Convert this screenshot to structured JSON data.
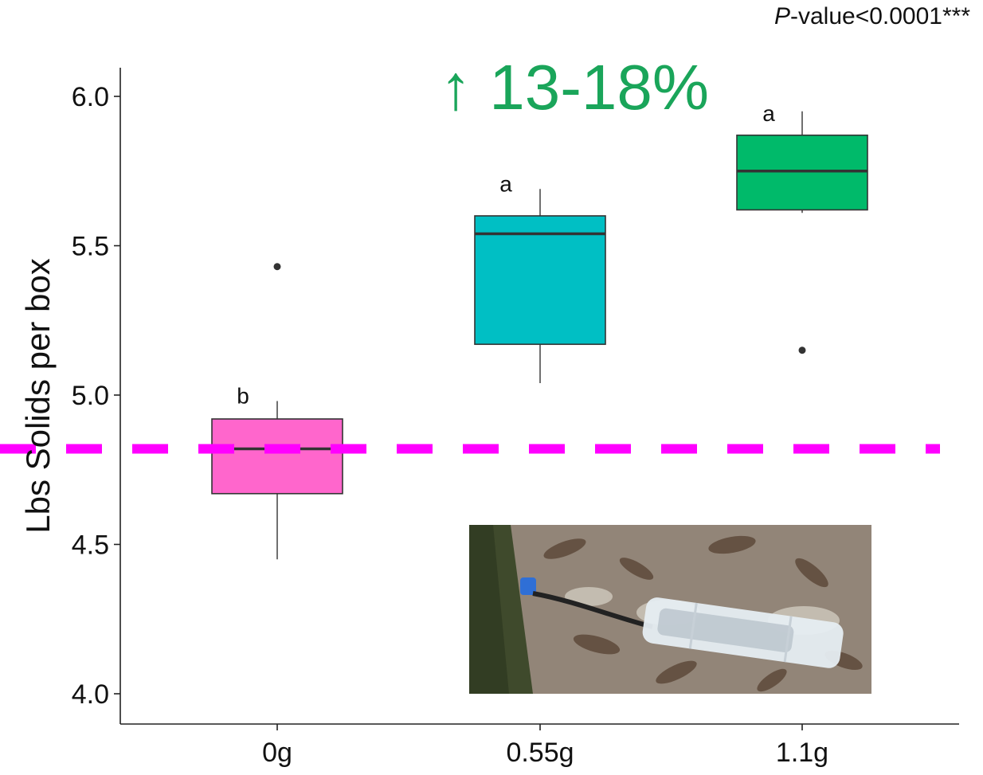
{
  "pvalue": {
    "p_letter": "P",
    "rest": "-value<0.0001***"
  },
  "annotation": {
    "arrow": "↑",
    "text": "13-18%",
    "color": "#1aa55a"
  },
  "photo": {
    "subject": "drip-dispenser-tube-at-tree-base"
  },
  "chart_data": {
    "type": "box",
    "ylabel": "Lbs Solids per box",
    "xlabel": "",
    "ylim": [
      3.9,
      6.1
    ],
    "yticks": [
      4.0,
      4.5,
      5.0,
      5.5,
      6.0
    ],
    "ytick_labels": [
      "4.0",
      "4.5",
      "5.0",
      "5.5",
      "6.0"
    ],
    "categories": [
      "0g",
      "0.55g",
      "1.1g"
    ],
    "boxes": [
      {
        "category": "0g",
        "q1": 4.67,
        "median": 4.82,
        "q3": 4.92,
        "whisker_low": 4.45,
        "whisker_high": 4.98,
        "outliers": [
          5.43
        ],
        "group": "b",
        "color": "#ff66cc"
      },
      {
        "category": "0.55g",
        "q1": 5.17,
        "median": 5.54,
        "q3": 5.6,
        "whisker_low": 5.04,
        "whisker_high": 5.69,
        "outliers": [],
        "group": "a",
        "color": "#00bfc4"
      },
      {
        "category": "1.1g",
        "q1": 5.62,
        "median": 5.75,
        "q3": 5.87,
        "whisker_low": 5.61,
        "whisker_high": 5.95,
        "outliers": [
          5.15
        ],
        "group": "a",
        "color": "#00ba6a"
      }
    ],
    "reference_line": {
      "y": 4.82,
      "color": "#ff00ff",
      "style": "dashed"
    },
    "grid": false,
    "legend": "none"
  }
}
